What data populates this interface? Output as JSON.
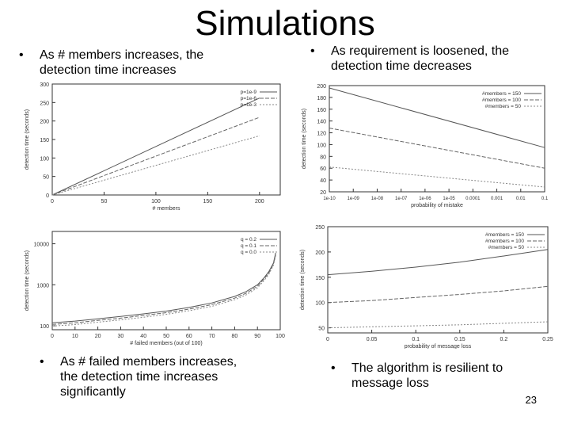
{
  "slide": {
    "title": "Simulations",
    "page_number": "23",
    "bullets": [
      {
        "marker": "•",
        "text": "As # members increases, the detection time increases"
      },
      {
        "marker": "•",
        "text": "As requirement is loosened, the detection time decreases"
      },
      {
        "marker": "•",
        "text": "As # failed members increases, the detection time increases significantly"
      },
      {
        "marker": "•",
        "text": "The algorithm is resilient to message loss"
      }
    ]
  },
  "chart_data": [
    {
      "type": "line",
      "xlabel": "# members",
      "ylabel": "detection time (seconds)",
      "xlim": [
        0,
        220
      ],
      "ylim": [
        0,
        300
      ],
      "xticks": [
        0,
        50,
        100,
        150,
        200
      ],
      "yticks": [
        0,
        50,
        100,
        150,
        200,
        250,
        300
      ],
      "legend": "top-right",
      "series": [
        {
          "name": "p=1e-9",
          "x": [
            0,
            200
          ],
          "values": [
            0,
            262
          ]
        },
        {
          "name": "p=1e-6",
          "x": [
            0,
            200
          ],
          "values": [
            0,
            210
          ]
        },
        {
          "name": "p=1e-3",
          "x": [
            0,
            200
          ],
          "values": [
            0,
            160
          ]
        }
      ]
    },
    {
      "type": "line",
      "xlabel": "probability of mistake",
      "ylabel": "detection time (seconds)",
      "x_tick_labels": [
        "1e-10",
        "1e-09",
        "1e-08",
        "1e-07",
        "1e-06",
        "1e-05",
        "0.0001",
        "0.001",
        "0.01",
        "0.1"
      ],
      "xlim": [
        0,
        9
      ],
      "ylim": [
        20,
        200
      ],
      "yticks": [
        20,
        40,
        60,
        80,
        100,
        120,
        140,
        160,
        180,
        200
      ],
      "legend": "top-right",
      "series": [
        {
          "name": "#members = 150",
          "x": [
            0,
            9
          ],
          "values": [
            196,
            95
          ]
        },
        {
          "name": "#members = 100",
          "x": [
            0,
            9
          ],
          "values": [
            128,
            60
          ]
        },
        {
          "name": "#members = 50",
          "x": [
            0,
            9
          ],
          "values": [
            62,
            28
          ]
        }
      ]
    },
    {
      "type": "line",
      "xlabel": "# failed members (out of 100)",
      "ylabel": "detection time (seconds)",
      "yscale": "log",
      "xlim": [
        0,
        100
      ],
      "ylim": [
        80,
        20000
      ],
      "xticks": [
        0,
        10,
        20,
        30,
        40,
        50,
        60,
        70,
        80,
        90,
        100
      ],
      "yticks": [
        100,
        1000,
        10000
      ],
      "y_tick_labels": [
        "100",
        "1000",
        "10000"
      ],
      "legend": "top-right",
      "series": [
        {
          "name": "q = 0.2",
          "x": [
            0,
            10,
            20,
            30,
            40,
            50,
            60,
            70,
            80,
            85,
            90,
            93,
            95,
            97,
            98
          ],
          "values": [
            118,
            130,
            148,
            168,
            195,
            228,
            280,
            360,
            520,
            680,
            1000,
            1500,
            2100,
            3400,
            6000
          ]
        },
        {
          "name": "q = 0.1",
          "x": [
            0,
            10,
            20,
            30,
            40,
            50,
            60,
            70,
            80,
            85,
            90,
            93,
            95,
            97,
            98
          ],
          "values": [
            108,
            118,
            135,
            153,
            178,
            208,
            255,
            328,
            470,
            620,
            920,
            1400,
            1950,
            3200,
            5600
          ]
        },
        {
          "name": "q = 0.0",
          "x": [
            0,
            10,
            20,
            30,
            40,
            50,
            60,
            70,
            80,
            85,
            90,
            93,
            95,
            97,
            98
          ],
          "values": [
            98,
            107,
            122,
            139,
            161,
            190,
            233,
            298,
            430,
            565,
            840,
            1280,
            1800,
            3000,
            5200
          ]
        }
      ]
    },
    {
      "type": "line",
      "xlabel": "probability of message loss",
      "ylabel": "detection time (seconds)",
      "xlim": [
        0,
        0.25
      ],
      "ylim": [
        40,
        250
      ],
      "xticks": [
        0,
        0.05,
        0.1,
        0.15,
        0.2,
        0.25
      ],
      "yticks": [
        50,
        100,
        150,
        200,
        250
      ],
      "legend": "top-right",
      "series": [
        {
          "name": "#members = 150",
          "x": [
            0,
            0.05,
            0.1,
            0.15,
            0.2,
            0.25
          ],
          "values": [
            155,
            162,
            170,
            180,
            192,
            205
          ]
        },
        {
          "name": "#members = 100",
          "x": [
            0,
            0.05,
            0.1,
            0.15,
            0.2,
            0.25
          ],
          "values": [
            100,
            104,
            110,
            116,
            123,
            132
          ]
        },
        {
          "name": "#members = 50",
          "x": [
            0,
            0.05,
            0.1,
            0.15,
            0.2,
            0.25
          ],
          "values": [
            50,
            52,
            54,
            56,
            59,
            62
          ]
        }
      ]
    }
  ]
}
